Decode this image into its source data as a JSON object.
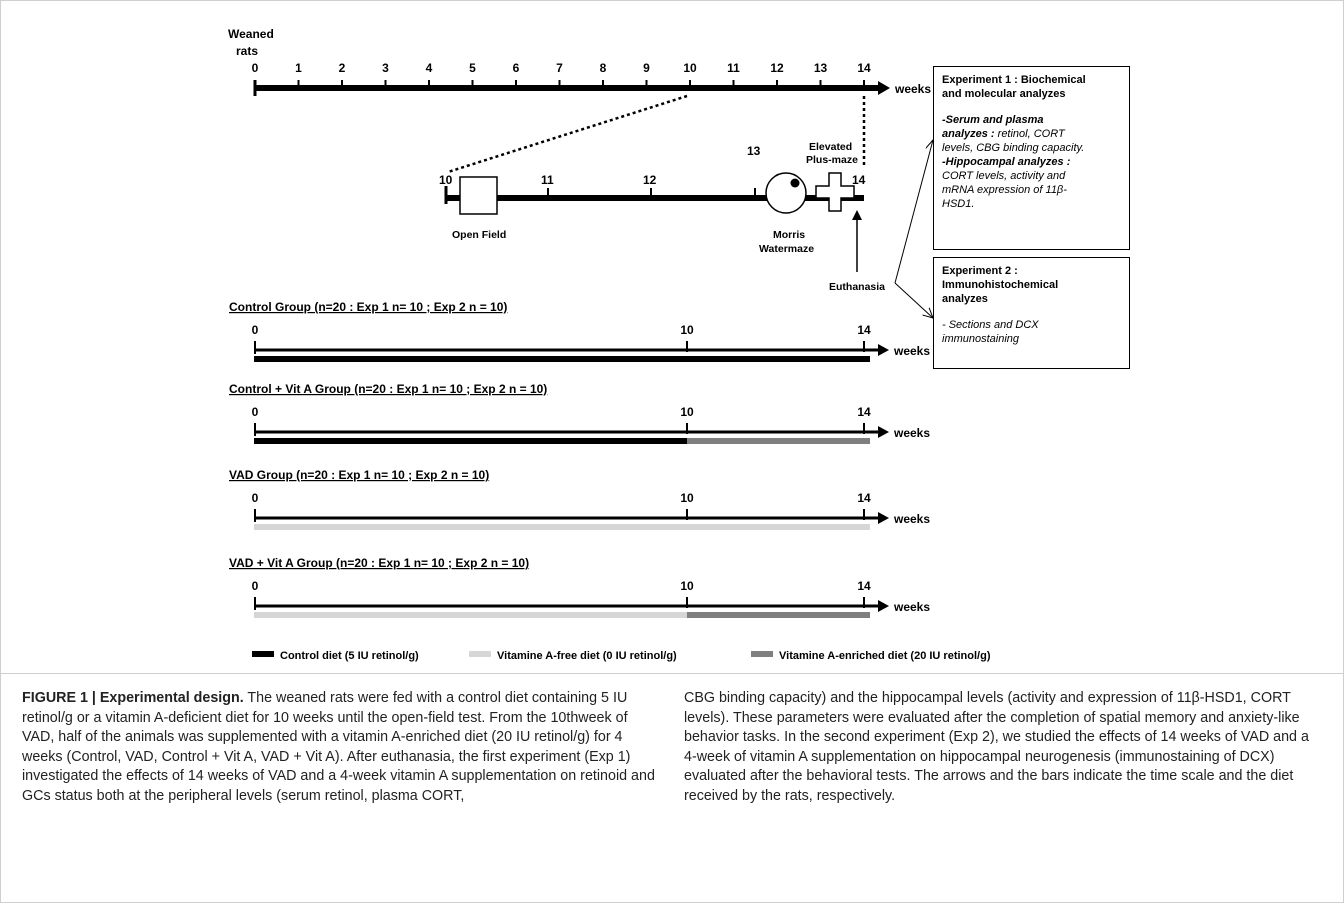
{
  "top_timeline": {
    "start_label_line1": "Weaned",
    "start_label_line2": "rats",
    "ticks": [
      "0",
      "1",
      "2",
      "3",
      "4",
      "5",
      "6",
      "7",
      "8",
      "9",
      "10",
      "11",
      "12",
      "13",
      "14"
    ],
    "unit": "weeks"
  },
  "zoom_timeline": {
    "ticks": [
      "10",
      "11",
      "12",
      "13",
      "14"
    ],
    "open_field": "Open Field",
    "morris_line1": "Morris",
    "morris_line2": "Watermaze",
    "epm_line1": "Elevated",
    "epm_line2": "Plus-maze",
    "euthanasia": "Euthanasia"
  },
  "experiment1": {
    "title_line1": "Experiment 1 : Biochemical",
    "title_line2": "and molecular analyzes",
    "serum_head_line1": "-Serum and plasma",
    "serum_head_line2": "analyzes :",
    "serum_text_line2": " retinol, CORT",
    "serum_text_line3": "levels, CBG binding capacity.",
    "hippo_head": "-Hippocampal analyzes :",
    "hippo_text_line1": "CORT levels, activity and",
    "hippo_text_line2": "mRNA expression of 11β-",
    "hippo_text_line3": "HSD1."
  },
  "experiment2": {
    "title_line1": "Experiment 2 :",
    "title_line2": "Immunohistochemical",
    "title_line3": "analyzes",
    "text_line1": "- Sections and DCX",
    "text_line2": "immunostaining"
  },
  "groups": [
    {
      "title": "Control Group (n=20 : Exp 1 n= 10 ; Exp 2 n = 10)",
      "t0": "0",
      "t10": "10",
      "t14": "14",
      "unit": "weeks",
      "diet_0_10": "control",
      "diet_10_14": "control"
    },
    {
      "title": "Control + Vit A Group (n=20 : Exp 1 n= 10 ; Exp 2 n = 10)",
      "t0": "0",
      "t10": "10",
      "t14": "14",
      "unit": "weeks",
      "diet_0_10": "control",
      "diet_10_14": "enriched"
    },
    {
      "title": "VAD Group (n=20 : Exp 1 n= 10 ; Exp 2 n = 10)",
      "t0": "0",
      "t10": "10",
      "t14": "14",
      "unit": "weeks",
      "diet_0_10": "free",
      "diet_10_14": "free"
    },
    {
      "title": "VAD + Vit A Group (n=20 : Exp 1 n= 10 ; Exp 2 n = 10)",
      "t0": "0",
      "t10": "10",
      "t14": "14",
      "unit": "weeks",
      "diet_0_10": "free",
      "diet_10_14": "enriched"
    }
  ],
  "legend": [
    {
      "label": "Control diet (5 IU retinol/g)",
      "color": "#000000"
    },
    {
      "label": "Vitamine A-free diet (0 IU retinol/g)",
      "color": "#d6d6d6"
    },
    {
      "label": "Vitamine A-enriched diet (20 IU retinol/g)",
      "color": "#7f7f7f"
    }
  ],
  "caption": {
    "fig_label": "FIGURE 1 | Experimental design.",
    "col1": " The weaned rats were fed with a control diet containing 5 IU retinol/g or a vitamin A-deficient diet for 10 weeks until the open-field test. From the 10thweek of VAD, half of the animals was supplemented with a vitamin A-enriched diet (20 IU retinol/g) for 4 weeks (Control, VAD, Control + Vit A, VAD + Vit A). After euthanasia, the first experiment (Exp 1) investigated the effects of 14 weeks of VAD and a 4-week vitamin A supplementation on retinoid and GCs status both at the peripheral levels (serum retinol, plasma CORT,",
    "col2": "CBG binding capacity) and the hippocampal levels (activity and expression of 11β-HSD1, CORT levels). These parameters were evaluated after the completion of spatial memory and anxiety-like behavior tasks. In the second experiment (Exp 2), we studied the effects of 14 weeks of VAD and a 4-week of vitamin A supplementation on hippocampal neurogenesis (immunostaining of DCX) evaluated after the behavioral tests. The arrows and the bars indicate the time scale and the diet received by the rats, respectively."
  }
}
